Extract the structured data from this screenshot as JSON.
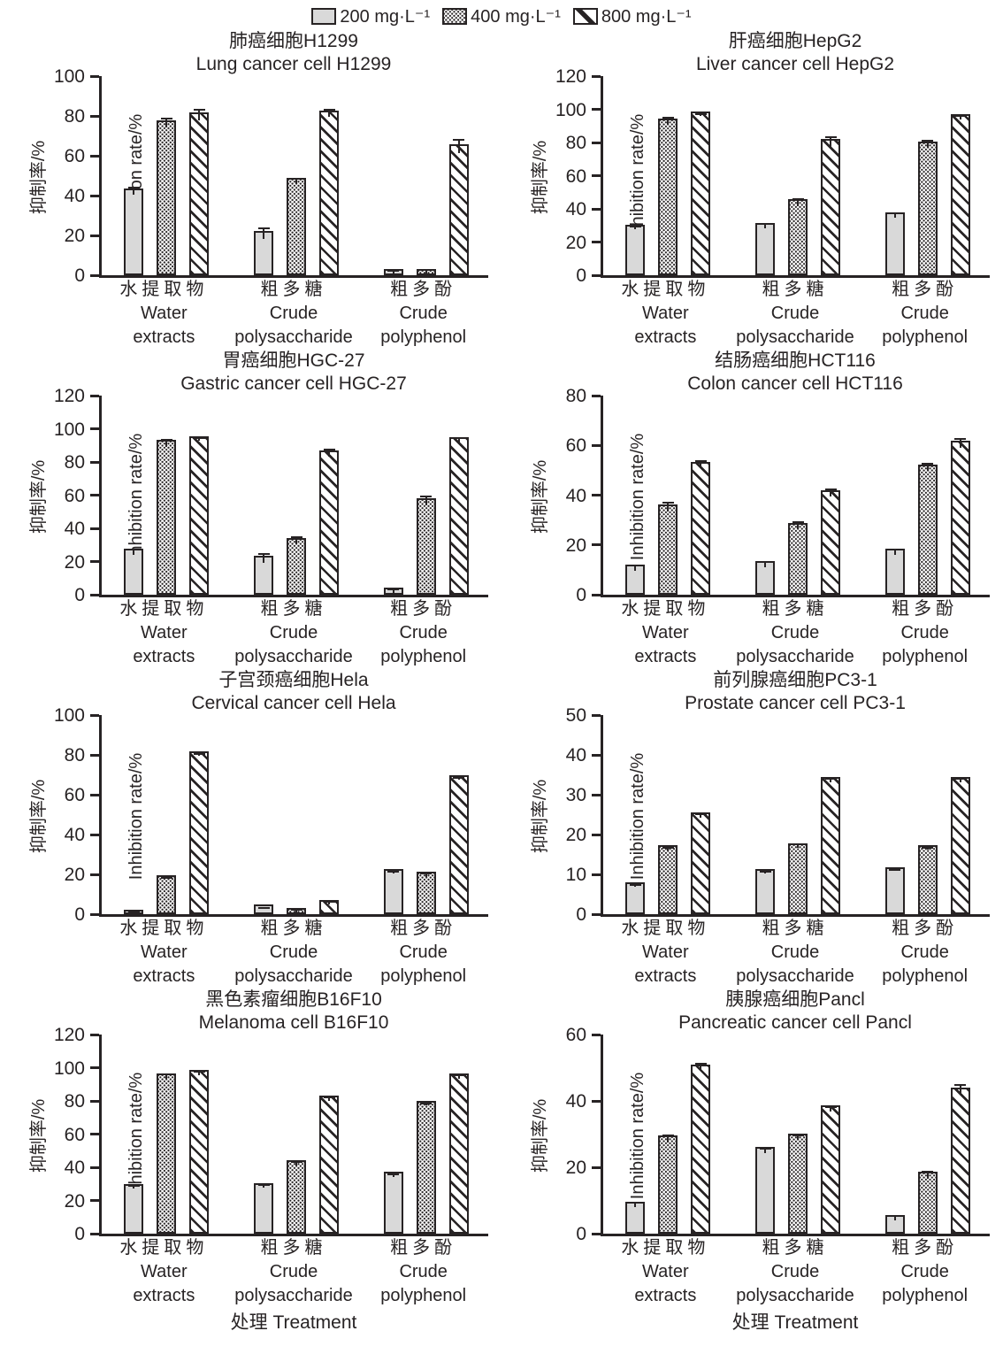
{
  "legend": {
    "items": [
      {
        "label": "200 mg·L⁻¹",
        "swatch": "solid-gray-swatch"
      },
      {
        "label": "400 mg·L⁻¹",
        "swatch": "dotted-swatch"
      },
      {
        "label": "800 mg·L⁻¹",
        "swatch": "diagonal-hatch-swatch"
      }
    ]
  },
  "axes": {
    "y_label_zh": "抑制率/%",
    "y_label_en": "Inhibition rate/%",
    "x_label": "处理 Treatment",
    "categories": [
      {
        "zh": "水提取物",
        "en1": "Water",
        "en2": "extracts"
      },
      {
        "zh": "粗多糖",
        "en1": "Crude",
        "en2": "polysaccharide"
      },
      {
        "zh": "粗多酚",
        "en1": "Crude",
        "en2": "polyphenol"
      }
    ]
  },
  "chart_data": [
    {
      "type": "bar",
      "title_zh": "肺癌细胞H1299",
      "title_en": "Lung cancer cell H1299",
      "ylim": [
        0,
        100
      ],
      "yticks": [
        0,
        20,
        40,
        60,
        80,
        100
      ],
      "categories": [
        "水提取物 Water extracts",
        "粗多糖 Crude polysaccharide",
        "粗多酚 Crude polyphenol"
      ],
      "series": [
        {
          "name": "200 mg·L⁻¹",
          "values": [
            42,
            20.5,
            1.5
          ],
          "errors": [
            2.5,
            3.5,
            1
          ]
        },
        {
          "name": "400 mg·L⁻¹",
          "values": [
            76,
            47,
            1.5
          ],
          "errors": [
            3,
            2,
            1.5
          ]
        },
        {
          "name": "800 mg·L⁻¹",
          "values": [
            80,
            81,
            64
          ],
          "errors": [
            3.5,
            2.5,
            4.5
          ]
        }
      ]
    },
    {
      "type": "bar",
      "title_zh": "肝癌细胞HepG2",
      "title_en": "Liver cancer cell HepG2",
      "ylim": [
        0,
        120
      ],
      "yticks": [
        0,
        20,
        40,
        60,
        80,
        100,
        120
      ],
      "categories": [
        "水提取物 Water extracts",
        "粗多糖 Crude polysaccharide",
        "粗多酚 Crude polyphenol"
      ],
      "series": [
        {
          "name": "200 mg·L⁻¹",
          "values": [
            28.5,
            29.5,
            36
          ],
          "errors": [
            1.5,
            2,
            2
          ]
        },
        {
          "name": "400 mg·L⁻¹",
          "values": [
            92.5,
            43.5,
            78.5
          ],
          "errors": [
            3,
            3,
            3
          ]
        },
        {
          "name": "800 mg·L⁻¹",
          "values": [
            96.5,
            80,
            95
          ],
          "errors": [
            1,
            4,
            1.5
          ]
        }
      ]
    },
    {
      "type": "bar",
      "title_zh": "胃癌细胞HGC-27",
      "title_en": "Gastric cancer cell HGC-27",
      "ylim": [
        0,
        120
      ],
      "yticks": [
        0,
        20,
        40,
        60,
        80,
        100,
        120
      ],
      "categories": [
        "水提取物 Water extracts",
        "粗多糖 Crude polysaccharide",
        "粗多酚 Crude polyphenol"
      ],
      "series": [
        {
          "name": "200 mg·L⁻¹",
          "values": [
            25.5,
            21.5,
            2
          ],
          "errors": [
            2.5,
            3.5,
            1.5
          ]
        },
        {
          "name": "400 mg·L⁻¹",
          "values": [
            91,
            32,
            56
          ],
          "errors": [
            3,
            3,
            3.5
          ]
        },
        {
          "name": "800 mg·L⁻¹",
          "values": [
            93.5,
            85,
            93
          ],
          "errors": [
            1.5,
            3,
            2
          ]
        }
      ]
    },
    {
      "type": "bar",
      "title_zh": "结肠癌细胞HCT116",
      "title_en": "Colon cancer cell HCT116",
      "ylim": [
        0,
        80
      ],
      "yticks": [
        0,
        20,
        40,
        60,
        80
      ],
      "categories": [
        "水提取物 Water extracts",
        "粗多糖 Crude polysaccharide",
        "粗多酚 Crude polyphenol"
      ],
      "series": [
        {
          "name": "200 mg·L⁻¹",
          "values": [
            10.5,
            12,
            17
          ],
          "errors": [
            1.5,
            1.5,
            1.5
          ]
        },
        {
          "name": "400 mg·L⁻¹",
          "values": [
            35,
            27.5,
            51
          ],
          "errors": [
            2.5,
            2,
            2
          ]
        },
        {
          "name": "800 mg·L⁻¹",
          "values": [
            52,
            40.5,
            60.5
          ],
          "errors": [
            2,
            2,
            2.5
          ]
        }
      ]
    },
    {
      "type": "bar",
      "title_zh": "子宫颈癌细胞Hela",
      "title_en": "Cervical cancer cell Hela",
      "ylim": [
        0,
        100
      ],
      "yticks": [
        0,
        20,
        40,
        60,
        80,
        100
      ],
      "categories": [
        "水提取物 Water extracts",
        "粗多糖 Crude polysaccharide",
        "粗多酚 Crude polyphenol"
      ],
      "series": [
        {
          "name": "200 mg·L⁻¹",
          "values": [
            0.5,
            3,
            21
          ],
          "errors": [
            1.5,
            0.5,
            1
          ]
        },
        {
          "name": "400 mg·L⁻¹",
          "values": [
            18,
            1.5,
            19.5
          ],
          "errors": [
            0.5,
            1,
            1.5
          ]
        },
        {
          "name": "800 mg·L⁻¹",
          "values": [
            80,
            5.5,
            68
          ],
          "errors": [
            1,
            1,
            1
          ]
        }
      ]
    },
    {
      "type": "bar",
      "title_zh": "前列腺癌细胞PC3-1",
      "title_en": "Prostate cancer cell PC3-1",
      "ylim": [
        0,
        50
      ],
      "yticks": [
        0,
        10,
        20,
        30,
        40,
        50
      ],
      "categories": [
        "水提取物 Water extracts",
        "粗多糖 Crude polysaccharide",
        "粗多酚 Crude polyphenol"
      ],
      "series": [
        {
          "name": "200 mg·L⁻¹",
          "values": [
            7.2,
            10.4,
            11
          ],
          "errors": [
            0.4,
            0.4,
            0.3
          ]
        },
        {
          "name": "400 mg·L⁻¹",
          "values": [
            16.4,
            17,
            16.5
          ],
          "errors": [
            0.6,
            0.7,
            0.5
          ]
        },
        {
          "name": "800 mg·L⁻¹",
          "values": [
            24.6,
            33.5,
            33.5
          ],
          "errors": [
            0.7,
            0.8,
            0.8
          ]
        }
      ]
    },
    {
      "type": "bar",
      "title_zh": "黑色素瘤细胞B16F10",
      "title_en": "Melanoma cell B16F10",
      "ylim": [
        0,
        120
      ],
      "yticks": [
        0,
        20,
        40,
        60,
        80,
        100,
        120
      ],
      "categories": [
        "水提取物 Water extracts",
        "粗多糖 Crude polysaccharide",
        "粗多酚 Crude polyphenol"
      ],
      "series": [
        {
          "name": "200 mg·L⁻¹",
          "values": [
            28,
            28.5,
            35
          ],
          "errors": [
            1.5,
            1.5,
            1.5
          ]
        },
        {
          "name": "400 mg·L⁻¹",
          "values": [
            94.5,
            42,
            78
          ],
          "errors": [
            2,
            1.5,
            1
          ]
        },
        {
          "name": "800 mg·L⁻¹",
          "values": [
            96.5,
            81,
            94.5
          ],
          "errors": [
            1.5,
            1.5,
            1.5
          ]
        }
      ],
      "x_axis_label": "处理 Treatment"
    },
    {
      "type": "bar",
      "title_zh": "胰腺癌细胞Pancl",
      "title_en": "Pancreatic cancer cell Pancl",
      "ylim": [
        0,
        60
      ],
      "yticks": [
        0,
        20,
        40,
        60
      ],
      "categories": [
        "水提取物 Water extracts",
        "粗多糖 Crude polysaccharide",
        "粗多酚 Crude polyphenol"
      ],
      "series": [
        {
          "name": "200 mg·L⁻¹",
          "values": [
            8.5,
            25,
            4.5
          ],
          "errors": [
            1,
            1,
            1
          ]
        },
        {
          "name": "400 mg·L⁻¹",
          "values": [
            28.5,
            29,
            17.5
          ],
          "errors": [
            1.5,
            1,
            1.5
          ]
        },
        {
          "name": "800 mg·L⁻¹",
          "values": [
            50,
            37.5,
            43
          ],
          "errors": [
            1.5,
            1,
            2
          ]
        }
      ],
      "x_axis_label": "处理 Treatment"
    }
  ]
}
